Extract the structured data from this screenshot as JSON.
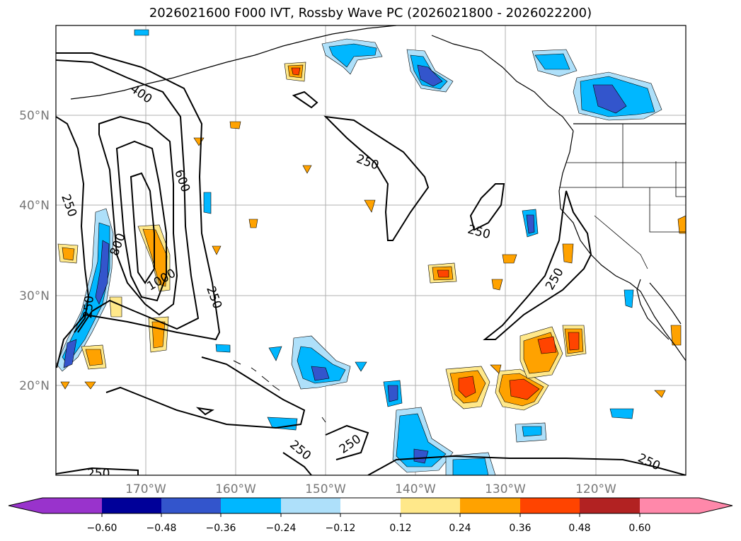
{
  "title": "2026021600 F000 IVT, Rossby Wave PC (2026021800 - 2026022200)",
  "lat_labels": [
    "50°N",
    "40°N",
    "30°N",
    "20°N"
  ],
  "lon_labels": [
    "170°W",
    "160°W",
    "150°W",
    "140°W",
    "130°W",
    "120°W"
  ],
  "contour_labels": [
    "400",
    "600",
    "800",
    "1000",
    "250",
    "250",
    "250",
    "250",
    "250",
    "250",
    "250",
    "250",
    "250",
    "250"
  ],
  "colorbar": {
    "ticks": [
      "−0.60",
      "−0.48",
      "−0.36",
      "−0.24",
      "−0.12",
      "0.12",
      "0.24",
      "0.36",
      "0.48",
      "0.60"
    ],
    "colors": [
      "#9933cc",
      "#000099",
      "#3355cc",
      "#00b7ff",
      "#aee0fa",
      "#ffffff",
      "#ffe88a",
      "#ffa200",
      "#ff4400",
      "#b22222",
      "#ff88aa"
    ]
  },
  "colors": {
    "coast": "#000000",
    "grid": "#b0b0b0",
    "contour": "#000000"
  }
}
